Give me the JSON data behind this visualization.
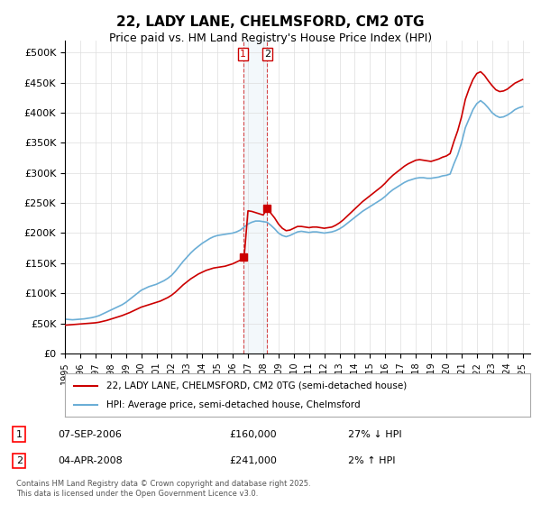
{
  "title": "22, LADY LANE, CHELMSFORD, CM2 0TG",
  "subtitle": "Price paid vs. HM Land Registry's House Price Index (HPI)",
  "ylabel": "",
  "xlim_start": 1995.0,
  "xlim_end": 2025.5,
  "ylim": [
    0,
    520000
  ],
  "yticks": [
    0,
    50000,
    100000,
    150000,
    200000,
    250000,
    300000,
    350000,
    400000,
    450000,
    500000
  ],
  "ytick_labels": [
    "£0",
    "£50K",
    "£100K",
    "£150K",
    "£200K",
    "£250K",
    "£300K",
    "£350K",
    "£400K",
    "£450K",
    "£500K"
  ],
  "hpi_color": "#6baed6",
  "price_color": "#cc0000",
  "marker_color": "#cc0000",
  "vline1_x": 2006.69,
  "vline2_x": 2008.26,
  "sale1_x": 2006.69,
  "sale1_y": 160000,
  "sale2_x": 2008.26,
  "sale2_y": 241000,
  "legend_label_red": "22, LADY LANE, CHELMSFORD, CM2 0TG (semi-detached house)",
  "legend_label_blue": "HPI: Average price, semi-detached house, Chelmsford",
  "table_row1": [
    "1",
    "07-SEP-2006",
    "£160,000",
    "27% ↓ HPI"
  ],
  "table_row2": [
    "2",
    "04-APR-2008",
    "£241,000",
    "2% ↑ HPI"
  ],
  "footer": "Contains HM Land Registry data © Crown copyright and database right 2025.\nThis data is licensed under the Open Government Licence v3.0.",
  "background_color": "#ffffff",
  "grid_color": "#dddddd",
  "xtick_years": [
    1995,
    1996,
    1997,
    1998,
    1999,
    2000,
    2001,
    2002,
    2003,
    2004,
    2005,
    2006,
    2007,
    2008,
    2009,
    2010,
    2011,
    2012,
    2013,
    2014,
    2015,
    2016,
    2017,
    2018,
    2019,
    2020,
    2021,
    2022,
    2023,
    2024,
    2025
  ],
  "hpi_data_x": [
    1995.0,
    1995.25,
    1995.5,
    1995.75,
    1996.0,
    1996.25,
    1996.5,
    1996.75,
    1997.0,
    1997.25,
    1997.5,
    1997.75,
    1998.0,
    1998.25,
    1998.5,
    1998.75,
    1999.0,
    1999.25,
    1999.5,
    1999.75,
    2000.0,
    2000.25,
    2000.5,
    2000.75,
    2001.0,
    2001.25,
    2001.5,
    2001.75,
    2002.0,
    2002.25,
    2002.5,
    2002.75,
    2003.0,
    2003.25,
    2003.5,
    2003.75,
    2004.0,
    2004.25,
    2004.5,
    2004.75,
    2005.0,
    2005.25,
    2005.5,
    2005.75,
    2006.0,
    2006.25,
    2006.5,
    2006.75,
    2007.0,
    2007.25,
    2007.5,
    2007.75,
    2008.0,
    2008.25,
    2008.5,
    2008.75,
    2009.0,
    2009.25,
    2009.5,
    2009.75,
    2010.0,
    2010.25,
    2010.5,
    2010.75,
    2011.0,
    2011.25,
    2011.5,
    2011.75,
    2012.0,
    2012.25,
    2012.5,
    2012.75,
    2013.0,
    2013.25,
    2013.5,
    2013.75,
    2014.0,
    2014.25,
    2014.5,
    2014.75,
    2015.0,
    2015.25,
    2015.5,
    2015.75,
    2016.0,
    2016.25,
    2016.5,
    2016.75,
    2017.0,
    2017.25,
    2017.5,
    2017.75,
    2018.0,
    2018.25,
    2018.5,
    2018.75,
    2019.0,
    2019.25,
    2019.5,
    2019.75,
    2020.0,
    2020.25,
    2020.5,
    2020.75,
    2021.0,
    2021.25,
    2021.5,
    2021.75,
    2022.0,
    2022.25,
    2022.5,
    2022.75,
    2023.0,
    2023.25,
    2023.5,
    2023.75,
    2024.0,
    2024.25,
    2024.5,
    2024.75,
    2025.0
  ],
  "hpi_data_y": [
    57000,
    56500,
    56000,
    56500,
    57000,
    57500,
    58500,
    59500,
    61000,
    63000,
    66000,
    69000,
    72000,
    75000,
    78000,
    81000,
    85000,
    90000,
    95000,
    100000,
    105000,
    108000,
    111000,
    113000,
    115000,
    118000,
    121000,
    125000,
    130000,
    137000,
    145000,
    153000,
    160000,
    167000,
    173000,
    178000,
    183000,
    187000,
    191000,
    194000,
    196000,
    197000,
    198000,
    199000,
    200000,
    202000,
    205000,
    210000,
    215000,
    218000,
    220000,
    220000,
    219000,
    218000,
    213000,
    207000,
    200000,
    196000,
    194000,
    196000,
    199000,
    202000,
    203000,
    202000,
    201000,
    202000,
    202000,
    201000,
    200000,
    201000,
    202000,
    204000,
    207000,
    211000,
    216000,
    221000,
    226000,
    231000,
    236000,
    240000,
    244000,
    248000,
    252000,
    256000,
    261000,
    267000,
    272000,
    276000,
    280000,
    284000,
    287000,
    289000,
    291000,
    292000,
    292000,
    291000,
    291000,
    292000,
    293000,
    295000,
    296000,
    298000,
    315000,
    330000,
    350000,
    375000,
    390000,
    405000,
    415000,
    420000,
    415000,
    408000,
    400000,
    395000,
    392000,
    393000,
    396000,
    400000,
    405000,
    408000,
    410000
  ],
  "red_data_x": [
    1995.0,
    1995.25,
    1995.5,
    1995.75,
    1996.0,
    1996.25,
    1996.5,
    1996.75,
    1997.0,
    1997.25,
    1997.5,
    1997.75,
    1998.0,
    1998.25,
    1998.5,
    1998.75,
    1999.0,
    1999.25,
    1999.5,
    1999.75,
    2000.0,
    2000.25,
    2000.5,
    2000.75,
    2001.0,
    2001.25,
    2001.5,
    2001.75,
    2002.0,
    2002.25,
    2002.5,
    2002.75,
    2003.0,
    2003.25,
    2003.5,
    2003.75,
    2004.0,
    2004.25,
    2004.5,
    2004.75,
    2005.0,
    2005.25,
    2005.5,
    2005.75,
    2006.0,
    2006.25,
    2006.5,
    2006.75,
    2007.0,
    2007.25,
    2007.5,
    2007.75,
    2008.0,
    2008.25,
    2008.5,
    2008.75,
    2009.0,
    2009.25,
    2009.5,
    2009.75,
    2010.0,
    2010.25,
    2010.5,
    2010.75,
    2011.0,
    2011.25,
    2011.5,
    2011.75,
    2012.0,
    2012.25,
    2012.5,
    2012.75,
    2013.0,
    2013.25,
    2013.5,
    2013.75,
    2014.0,
    2014.25,
    2014.5,
    2014.75,
    2015.0,
    2015.25,
    2015.5,
    2015.75,
    2016.0,
    2016.25,
    2016.5,
    2016.75,
    2017.0,
    2017.25,
    2017.5,
    2017.75,
    2018.0,
    2018.25,
    2018.5,
    2018.75,
    2019.0,
    2019.25,
    2019.5,
    2019.75,
    2020.0,
    2020.25,
    2020.5,
    2020.75,
    2021.0,
    2021.25,
    2021.5,
    2021.75,
    2022.0,
    2022.25,
    2022.5,
    2022.75,
    2023.0,
    2023.25,
    2023.5,
    2023.75,
    2024.0,
    2024.25,
    2024.5,
    2024.75,
    2025.0
  ],
  "red_data_y": [
    47000,
    47500,
    48000,
    48500,
    49000,
    49500,
    50000,
    50500,
    51000,
    52000,
    53500,
    55000,
    57000,
    59000,
    61000,
    63000,
    65500,
    68000,
    71000,
    74000,
    77000,
    79000,
    81000,
    83000,
    85000,
    87000,
    90000,
    93000,
    97000,
    102000,
    108000,
    114000,
    119000,
    124000,
    128000,
    132000,
    135000,
    138000,
    140000,
    142000,
    143000,
    144000,
    145000,
    147000,
    149000,
    152000,
    155000,
    160000,
    237000,
    236000,
    234000,
    232000,
    230000,
    241000,
    233000,
    225000,
    215000,
    208000,
    204000,
    205000,
    208000,
    211000,
    211000,
    210000,
    209000,
    210000,
    210000,
    209000,
    208000,
    209000,
    210000,
    213000,
    217000,
    222000,
    228000,
    234000,
    240000,
    246000,
    252000,
    257000,
    262000,
    267000,
    272000,
    277000,
    283000,
    290000,
    296000,
    301000,
    306000,
    311000,
    315000,
    318000,
    321000,
    322000,
    321000,
    320000,
    319000,
    321000,
    323000,
    326000,
    328000,
    332000,
    352000,
    370000,
    393000,
    422000,
    440000,
    455000,
    465000,
    468000,
    462000,
    453000,
    445000,
    438000,
    435000,
    436000,
    439000,
    444000,
    449000,
    452000,
    455000
  ]
}
